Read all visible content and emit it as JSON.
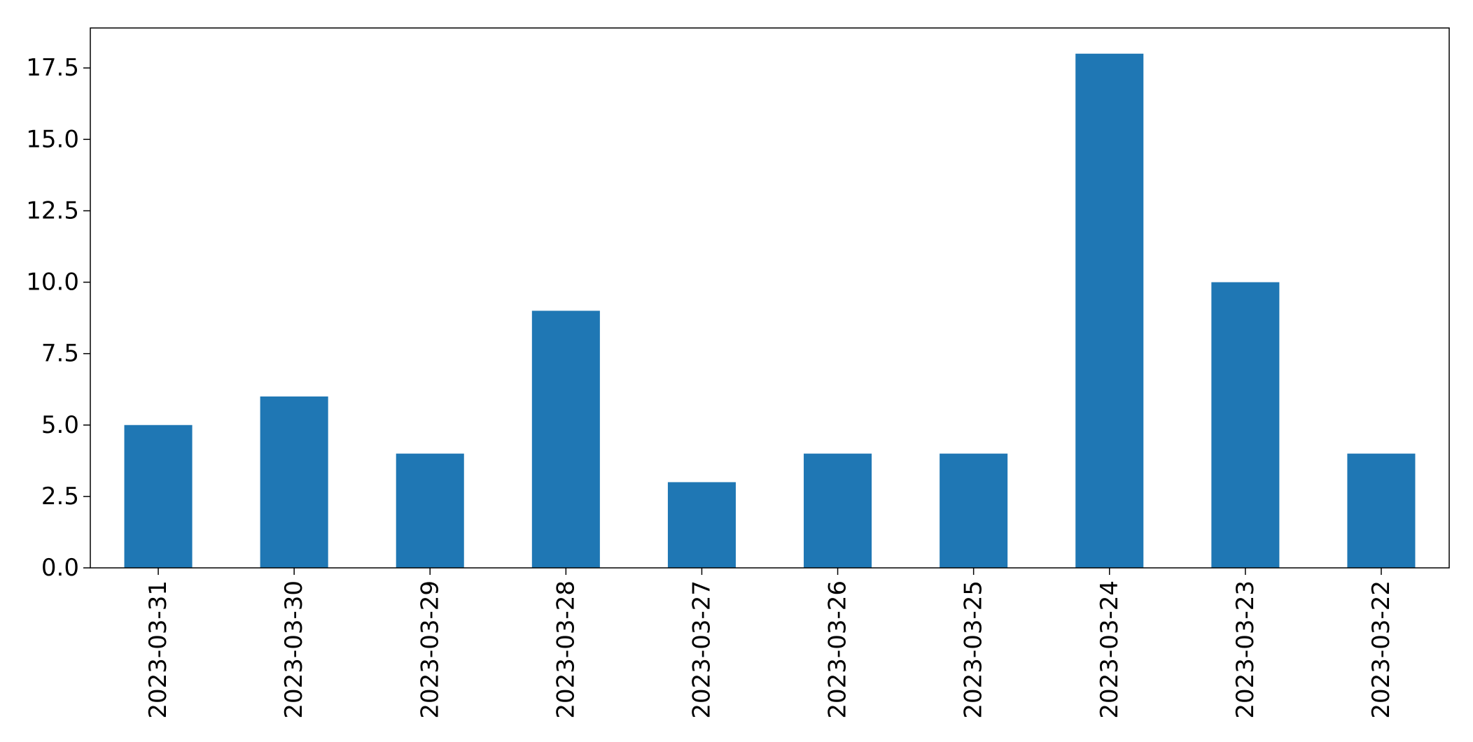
{
  "chart_data": {
    "type": "bar",
    "title": "",
    "xlabel": "",
    "ylabel": "",
    "categories": [
      "2023-03-31",
      "2023-03-30",
      "2023-03-29",
      "2023-03-28",
      "2023-03-27",
      "2023-03-26",
      "2023-03-25",
      "2023-03-24",
      "2023-03-23",
      "2023-03-22"
    ],
    "values": [
      5,
      6,
      4,
      9,
      3,
      4,
      4,
      18,
      10,
      4
    ],
    "ylim": [
      0,
      18.9
    ],
    "yticks": [
      "0.0",
      "2.5",
      "5.0",
      "7.5",
      "10.0",
      "12.5",
      "15.0",
      "17.5"
    ],
    "ytick_values": [
      0,
      2.5,
      5,
      7.5,
      10,
      12.5,
      15,
      17.5
    ],
    "bar_color": "#1f77b4",
    "grid": false,
    "legend": "none",
    "xtick_rotation": "vertical"
  }
}
